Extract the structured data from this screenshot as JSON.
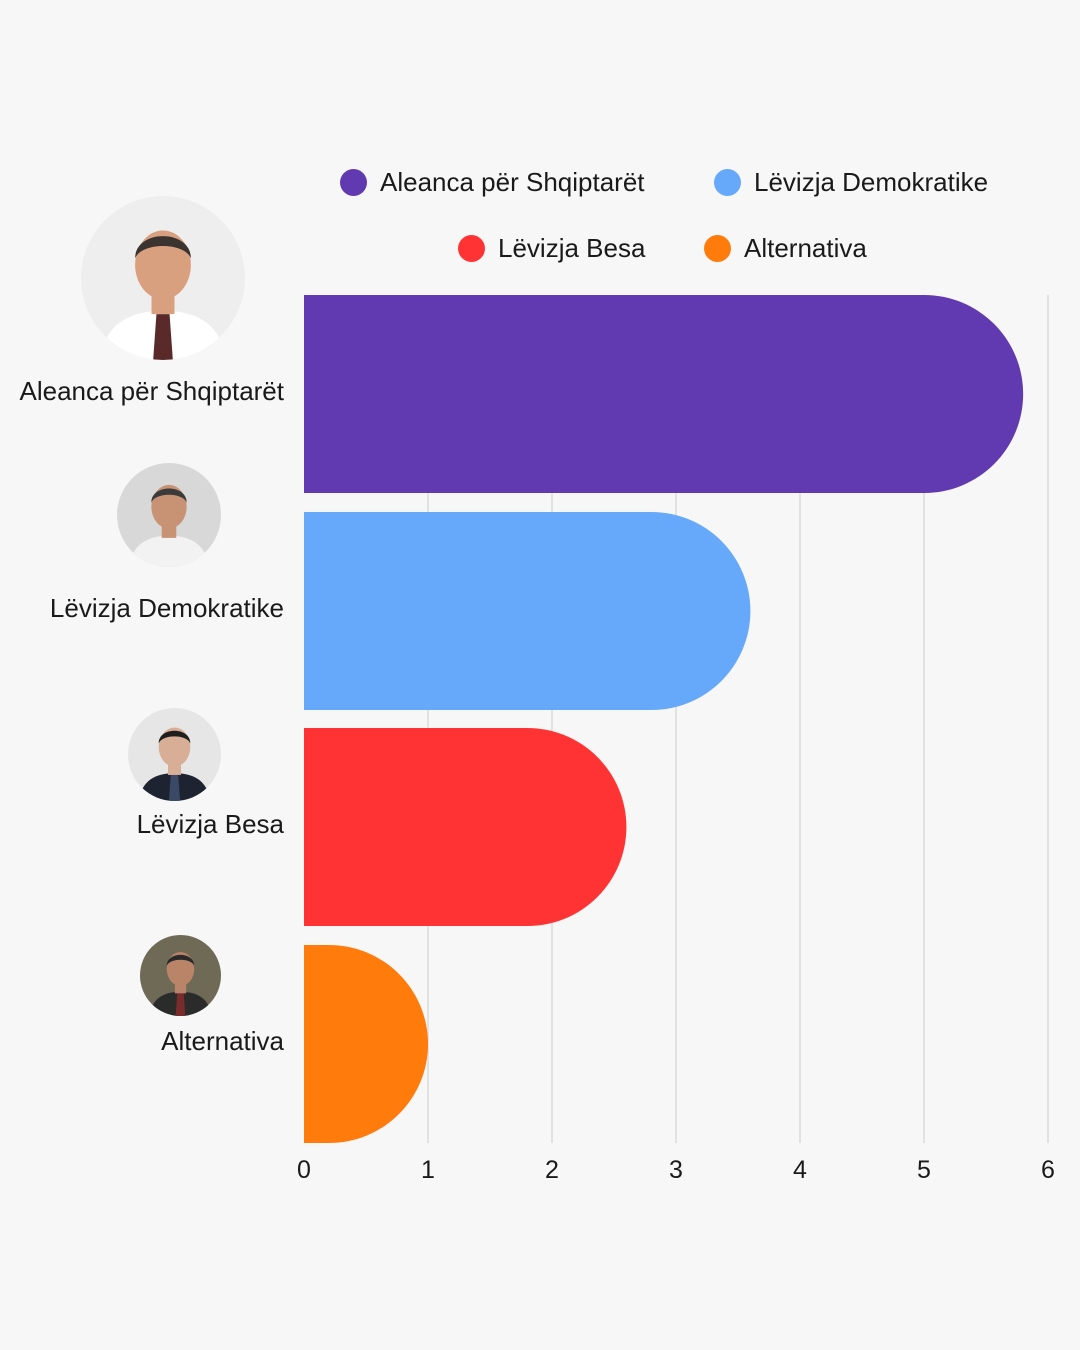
{
  "chart_data": {
    "type": "bar",
    "orientation": "horizontal",
    "categories": [
      "Aleanca për Shqiptarët",
      "Lëvizja Demokratike",
      "Lëvizja Besa",
      "Alternativa"
    ],
    "values": [
      5.8,
      3.6,
      2.6,
      1.0
    ],
    "colors": [
      "#6139b0",
      "#66a8fa",
      "#ff3334",
      "#ff7b0b"
    ],
    "xlim": [
      0,
      6
    ],
    "xticks": [
      "0",
      "1",
      "2",
      "3",
      "4",
      "5",
      "6"
    ],
    "grid": true,
    "legend_position": "top",
    "legend": [
      {
        "label": "Aleanca për Shqiptarët",
        "color": "#6139b0"
      },
      {
        "label": "Lëvizja Demokratike",
        "color": "#66a8fa"
      },
      {
        "label": "Lëvizja Besa",
        "color": "#ff3334"
      },
      {
        "label": "Alternativa",
        "color": "#ff7b0b"
      }
    ],
    "title": "",
    "xlabel": "",
    "ylabel": ""
  },
  "avatars": [
    {
      "icon": "person-photo-icon",
      "skin": "#d9a07f",
      "hair": "#3a3330",
      "suit": "#ffffff",
      "tie": "#5a2a2a",
      "bg": "#eeeeee"
    },
    {
      "icon": "person-photo-icon",
      "skin": "#c89274",
      "hair": "#3b3b3b",
      "suit": "#f2f2f2",
      "tie": "#f2f2f2",
      "bg": "#d8d8d8"
    },
    {
      "icon": "person-photo-icon",
      "skin": "#d8ae96",
      "hair": "#1f1f1f",
      "suit": "#1d2330",
      "tie": "#3a4a66",
      "bg": "#e6e6e6"
    },
    {
      "icon": "person-photo-icon",
      "skin": "#b98468",
      "hair": "#2a2a2a",
      "suit": "#2b2b2b",
      "tie": "#7a2b2b",
      "bg": "#6e6a56"
    }
  ]
}
